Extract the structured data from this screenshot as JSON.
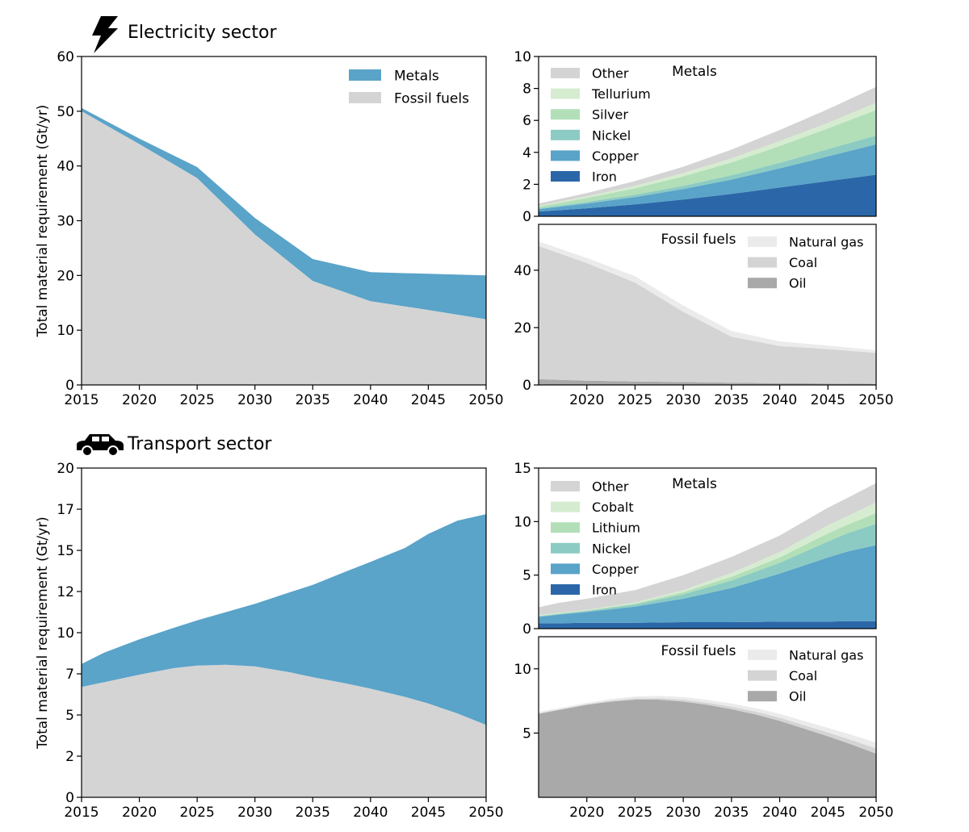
{
  "sections": [
    {
      "title": "Electricity sector",
      "icon": "lightning-bolt-icon"
    },
    {
      "title": "Transport sector",
      "icon": "car-icon"
    }
  ],
  "colors": {
    "metals": "#5aa3c9",
    "fossil": "#d4d4d4",
    "other": "#d4d4d4",
    "tellurium": "#d6ecd0",
    "silver": "#b2dfb8",
    "cobalt": "#d6ecd0",
    "lithium": "#b2dfb8",
    "nickel": "#8ccbc3",
    "copper": "#5aa3c9",
    "iron": "#2b67a8",
    "natural_gas": "#ebebeb",
    "coal": "#d4d4d4",
    "oil": "#a9a9a9"
  },
  "chart_data": [
    {
      "id": "elec_main",
      "type": "area",
      "stacked": true,
      "ylabel": "Total material requirement (Gt/yr)",
      "xlim": [
        2015,
        2050
      ],
      "ylim": [
        0,
        60
      ],
      "xticks": [
        "2015",
        "2020",
        "2025",
        "2030",
        "2035",
        "2040",
        "2045",
        "2050"
      ],
      "yticks": [
        "0",
        "10",
        "20",
        "30",
        "40",
        "50",
        "60"
      ],
      "ytick_values": [
        0,
        10,
        20,
        30,
        40,
        50,
        60
      ],
      "legend": {
        "position": "top-right",
        "entries": [
          "Metals",
          "Fossil fuels"
        ]
      },
      "x": [
        2015,
        2020,
        2025,
        2030,
        2035,
        2040,
        2045,
        2050
      ],
      "series": [
        {
          "name": "Fossil fuels",
          "color_key": "fossil",
          "values": [
            50.0,
            44.0,
            37.8,
            27.5,
            19.0,
            15.3,
            13.7,
            12.0
          ]
        },
        {
          "name": "Metals",
          "color_key": "metals",
          "values": [
            0.6,
            1.0,
            2.0,
            3.0,
            4.0,
            5.3,
            6.6,
            8.0
          ]
        }
      ]
    },
    {
      "id": "elec_metals",
      "type": "area",
      "stacked": true,
      "title": "Metals",
      "xlim": [
        2015,
        2050
      ],
      "ylim": [
        0,
        10
      ],
      "xticks": [],
      "yticks": [
        "0",
        "2",
        "4",
        "6",
        "8",
        "10"
      ],
      "ytick_values": [
        0,
        2,
        4,
        6,
        8,
        10
      ],
      "legend": {
        "position": "top-left",
        "entries": [
          "Other",
          "Tellurium",
          "Silver",
          "Nickel",
          "Copper",
          "Iron"
        ]
      },
      "x": [
        2015,
        2020,
        2025,
        2030,
        2035,
        2040,
        2045,
        2050
      ],
      "series": [
        {
          "name": "Iron",
          "color_key": "iron",
          "values": [
            0.3,
            0.5,
            0.75,
            1.05,
            1.4,
            1.8,
            2.2,
            2.6
          ]
        },
        {
          "name": "Copper",
          "color_key": "copper",
          "values": [
            0.15,
            0.3,
            0.45,
            0.65,
            0.9,
            1.2,
            1.55,
            1.9
          ]
        },
        {
          "name": "Nickel",
          "color_key": "nickel",
          "values": [
            0.05,
            0.1,
            0.15,
            0.2,
            0.27,
            0.35,
            0.45,
            0.55
          ]
        },
        {
          "name": "Silver",
          "color_key": "silver",
          "values": [
            0.1,
            0.25,
            0.4,
            0.6,
            0.8,
            1.05,
            1.3,
            1.6
          ]
        },
        {
          "name": "Tellurium",
          "color_key": "tellurium",
          "values": [
            0.05,
            0.1,
            0.15,
            0.2,
            0.25,
            0.3,
            0.35,
            0.45
          ]
        },
        {
          "name": "Other",
          "color_key": "other",
          "values": [
            0.15,
            0.2,
            0.3,
            0.4,
            0.55,
            0.7,
            0.85,
            1.0
          ]
        }
      ]
    },
    {
      "id": "elec_fossil",
      "type": "area",
      "stacked": true,
      "title": "Fossil fuels",
      "xlim": [
        2015,
        2050
      ],
      "ylim": [
        0,
        56
      ],
      "xticks": [
        "2020",
        "2025",
        "2030",
        "2035",
        "2040",
        "2045",
        "2050"
      ],
      "yticks": [
        "0",
        "20",
        "40"
      ],
      "ytick_values": [
        0,
        20,
        40
      ],
      "legend": {
        "position": "top-right",
        "entries": [
          "Natural gas",
          "Coal",
          "Oil"
        ]
      },
      "x": [
        2015,
        2020,
        2025,
        2030,
        2035,
        2040,
        2045,
        2050
      ],
      "series": [
        {
          "name": "Oil",
          "color_key": "oil",
          "values": [
            2.0,
            1.5,
            1.2,
            1.0,
            0.8,
            0.6,
            0.5,
            0.4
          ]
        },
        {
          "name": "Coal",
          "color_key": "coal",
          "values": [
            46.5,
            41.0,
            34.5,
            24.5,
            16.0,
            13.0,
            12.0,
            10.8
          ]
        },
        {
          "name": "Natural gas",
          "color_key": "natural_gas",
          "values": [
            1.5,
            1.8,
            2.2,
            2.2,
            2.0,
            1.6,
            1.2,
            0.9
          ]
        }
      ]
    },
    {
      "id": "trans_main",
      "type": "area",
      "stacked": true,
      "ylabel": "Total material requirement (Gt/yr)",
      "xlim": [
        2015,
        2050
      ],
      "ylim": [
        0,
        20
      ],
      "xticks": [
        "2015",
        "2020",
        "2025",
        "2030",
        "2035",
        "2040",
        "2045",
        "2050"
      ],
      "yticks": [
        "0",
        "2",
        "5",
        "7",
        "10",
        "12",
        "15",
        "17",
        "20"
      ],
      "ytick_values": [
        0,
        2.5,
        5,
        7.5,
        10,
        12.5,
        15,
        17.5,
        20
      ],
      "x": [
        2015,
        2017,
        2020,
        2023,
        2025,
        2027.5,
        2030,
        2033,
        2035,
        2038,
        2040,
        2043,
        2045,
        2047.5,
        2050
      ],
      "series": [
        {
          "name": "Fossil fuels",
          "color_key": "fossil",
          "values": [
            6.7,
            7.0,
            7.45,
            7.85,
            8.0,
            8.05,
            7.95,
            7.6,
            7.3,
            6.9,
            6.6,
            6.1,
            5.7,
            5.1,
            4.4
          ]
        },
        {
          "name": "Metals",
          "color_key": "metals",
          "values": [
            1.4,
            1.8,
            2.15,
            2.45,
            2.75,
            3.2,
            3.8,
            4.85,
            5.6,
            6.85,
            7.7,
            9.05,
            10.3,
            11.7,
            12.8
          ]
        }
      ]
    },
    {
      "id": "trans_metals",
      "type": "area",
      "stacked": true,
      "title": "Metals",
      "xlim": [
        2015,
        2050
      ],
      "ylim": [
        0,
        15
      ],
      "xticks": [],
      "yticks": [
        "0",
        "5",
        "10",
        "15"
      ],
      "ytick_values": [
        0,
        5,
        10,
        15
      ],
      "legend": {
        "position": "top-left",
        "entries": [
          "Other",
          "Cobalt",
          "Lithium",
          "Nickel",
          "Copper",
          "Iron"
        ]
      },
      "x": [
        2015,
        2017,
        2020,
        2025,
        2030,
        2035,
        2040,
        2045,
        2047,
        2050
      ],
      "series": [
        {
          "name": "Iron",
          "color_key": "iron",
          "values": [
            0.5,
            0.5,
            0.55,
            0.55,
            0.6,
            0.6,
            0.65,
            0.65,
            0.7,
            0.7
          ]
        },
        {
          "name": "Copper",
          "color_key": "copper",
          "values": [
            0.6,
            0.8,
            1.0,
            1.5,
            2.2,
            3.2,
            4.5,
            6.0,
            6.5,
            7.1
          ]
        },
        {
          "name": "Nickel",
          "color_key": "nickel",
          "values": [
            0.05,
            0.07,
            0.1,
            0.2,
            0.4,
            0.7,
            1.0,
            1.5,
            1.7,
            2.0
          ]
        },
        {
          "name": "Lithium",
          "color_key": "lithium",
          "values": [
            0.05,
            0.05,
            0.05,
            0.1,
            0.2,
            0.35,
            0.5,
            0.75,
            0.8,
            1.0
          ]
        },
        {
          "name": "Cobalt",
          "color_key": "cobalt",
          "values": [
            0.05,
            0.05,
            0.05,
            0.1,
            0.2,
            0.35,
            0.5,
            0.75,
            0.8,
            1.0
          ]
        },
        {
          "name": "Other",
          "color_key": "other",
          "values": [
            0.75,
            0.93,
            1.05,
            1.15,
            1.4,
            1.5,
            1.55,
            1.65,
            1.7,
            1.8
          ]
        }
      ]
    },
    {
      "id": "trans_fossil",
      "type": "area",
      "stacked": true,
      "title": "Fossil fuels",
      "xlim": [
        2015,
        2050
      ],
      "ylim": [
        0,
        12.5
      ],
      "xticks": [
        "2020",
        "2025",
        "2030",
        "2035",
        "2040",
        "2045",
        "2050"
      ],
      "yticks": [
        "5",
        "10"
      ],
      "ytick_values": [
        5,
        10
      ],
      "legend": {
        "position": "top-right",
        "entries": [
          "Natural gas",
          "Coal",
          "Oil"
        ]
      },
      "x": [
        2015,
        2017.5,
        2020,
        2022.5,
        2025,
        2027.5,
        2030,
        2032.5,
        2035,
        2037.5,
        2040,
        2042.5,
        2045,
        2047.5,
        2050
      ],
      "series": [
        {
          "name": "Oil",
          "color_key": "oil",
          "values": [
            6.5,
            6.85,
            7.2,
            7.45,
            7.6,
            7.6,
            7.45,
            7.2,
            6.85,
            6.45,
            5.95,
            5.35,
            4.75,
            4.1,
            3.4
          ]
        },
        {
          "name": "Coal",
          "color_key": "coal",
          "values": [
            0.05,
            0.05,
            0.05,
            0.07,
            0.1,
            0.12,
            0.15,
            0.17,
            0.2,
            0.22,
            0.25,
            0.27,
            0.3,
            0.35,
            0.4
          ]
        },
        {
          "name": "Natural gas",
          "color_key": "natural_gas",
          "values": [
            0.1,
            0.1,
            0.1,
            0.13,
            0.15,
            0.17,
            0.2,
            0.22,
            0.25,
            0.27,
            0.3,
            0.33,
            0.35,
            0.4,
            0.45
          ]
        }
      ]
    }
  ]
}
